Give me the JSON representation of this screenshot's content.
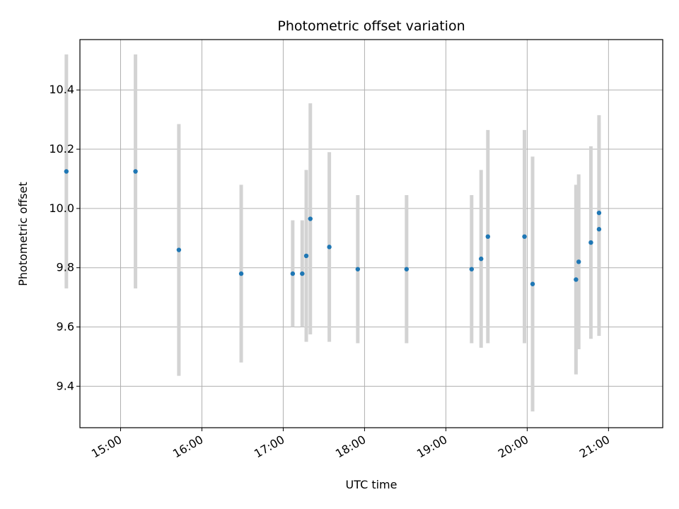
{
  "chart_data": {
    "type": "scatter",
    "title": "Photometric offset variation",
    "xlabel": "UTC time",
    "ylabel": "Photometric offset",
    "x_axis_kind": "time",
    "xlim": [
      "14:30",
      "21:40"
    ],
    "ylim": [
      9.26,
      10.57
    ],
    "x_ticks": [
      "15:00",
      "16:00",
      "17:00",
      "18:00",
      "19:00",
      "20:00",
      "21:00"
    ],
    "y_ticks": [
      9.4,
      9.6,
      9.8,
      10.0,
      10.2,
      10.4
    ],
    "grid": true,
    "colors": {
      "point": "#1f77b4",
      "errorbar": "#d3d3d3",
      "grid": "#b0b0b0"
    },
    "series": [
      {
        "points": [
          {
            "t": "14:20",
            "y": 10.125,
            "err": 0.395
          },
          {
            "t": "15:11",
            "y": 10.125,
            "err": 0.395
          },
          {
            "t": "15:43",
            "y": 9.86,
            "err": 0.425
          },
          {
            "t": "16:29",
            "y": 9.78,
            "err": 0.3
          },
          {
            "t": "17:07",
            "y": 9.78,
            "err": 0.18
          },
          {
            "t": "17:14",
            "y": 9.78,
            "err": 0.18
          },
          {
            "t": "17:17",
            "y": 9.84,
            "err": 0.29
          },
          {
            "t": "17:20",
            "y": 9.965,
            "err": 0.39
          },
          {
            "t": "17:34",
            "y": 9.87,
            "err": 0.32
          },
          {
            "t": "17:55",
            "y": 9.795,
            "err": 0.25
          },
          {
            "t": "18:31",
            "y": 9.795,
            "err": 0.25
          },
          {
            "t": "19:19",
            "y": 9.795,
            "err": 0.25
          },
          {
            "t": "19:26",
            "y": 9.83,
            "err": 0.3
          },
          {
            "t": "19:31",
            "y": 9.905,
            "err": 0.36
          },
          {
            "t": "19:58",
            "y": 9.905,
            "err": 0.36
          },
          {
            "t": "20:04",
            "y": 9.745,
            "err": 0.43
          },
          {
            "t": "20:36",
            "y": 9.76,
            "err": 0.32
          },
          {
            "t": "20:38",
            "y": 9.82,
            "err": 0.295
          },
          {
            "t": "20:47",
            "y": 9.885,
            "err": 0.325
          },
          {
            "t": "20:53",
            "y": 9.985,
            "err": 0.33
          },
          {
            "t": "20:53",
            "y": 9.93,
            "err": 0.36
          }
        ]
      }
    ]
  }
}
